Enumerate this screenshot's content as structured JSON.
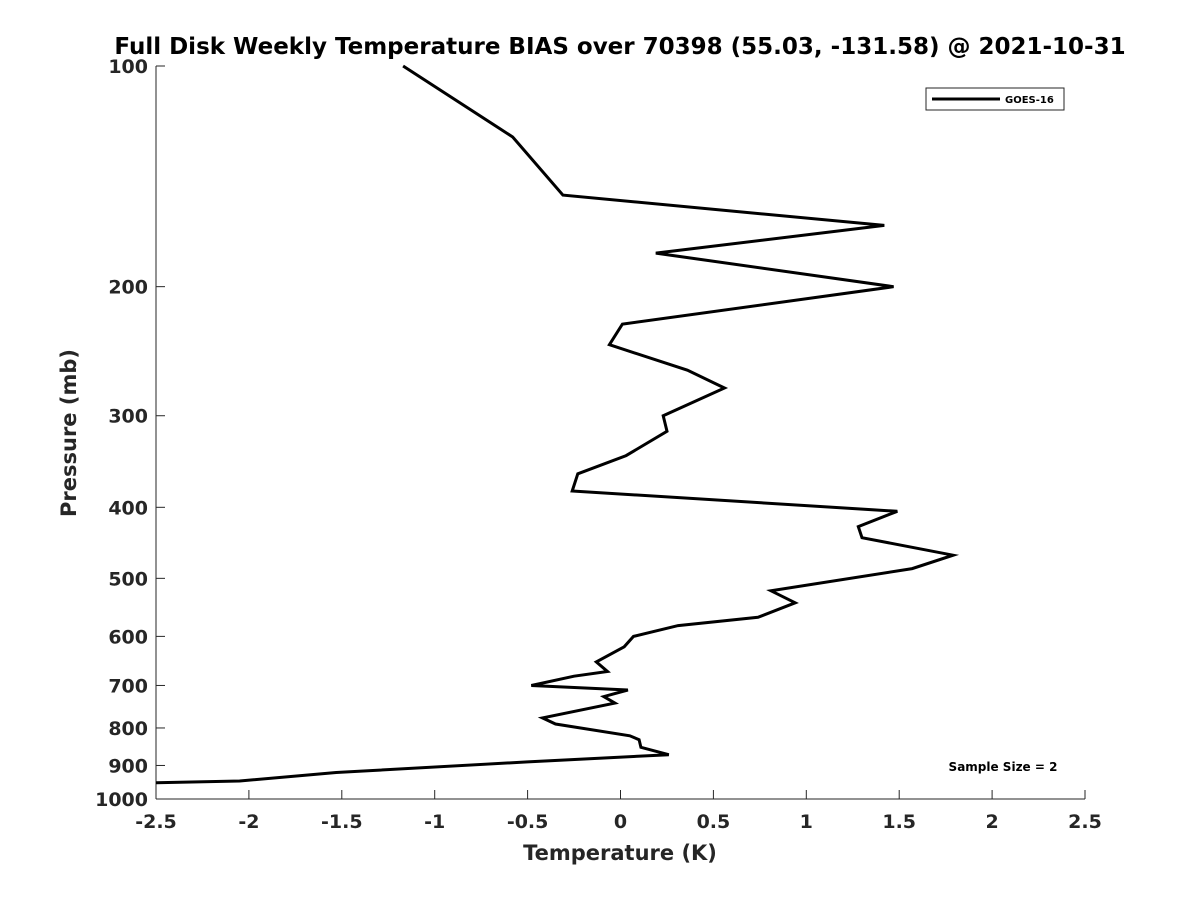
{
  "chart_data": {
    "type": "line",
    "title": "Full Disk Weekly Temperature BIAS over 70398 (55.03, -131.58) @ 2021-10-31",
    "xlabel": "Temperature (K)",
    "ylabel": "Pressure (mb)",
    "xlim": [
      -2.5,
      2.5
    ],
    "ylim": [
      100,
      1000
    ],
    "y_scale": "log",
    "y_reversed": true,
    "x_ticks": [
      -2.5,
      -2,
      -1.5,
      -1,
      -0.5,
      0,
      0.5,
      1,
      1.5,
      2,
      2.5
    ],
    "x_tick_labels": [
      "-2.5",
      "-2",
      "-1.5",
      "-1",
      "-0.5",
      "0",
      "0.5",
      "1",
      "1.5",
      "2",
      "2.5"
    ],
    "y_ticks": [
      100,
      200,
      300,
      400,
      500,
      600,
      700,
      800,
      900,
      1000
    ],
    "y_tick_labels": [
      "100",
      "200",
      "300",
      "400",
      "500",
      "600",
      "700",
      "800",
      "900",
      "1000"
    ],
    "grid": false,
    "legend_position": "top-right",
    "line_color": "#000000",
    "series": [
      {
        "name": "GOES-16",
        "x": [
          -1.17,
          -0.58,
          -0.31,
          1.42,
          0.19,
          1.47,
          0.01,
          -0.06,
          0.36,
          0.56,
          0.23,
          0.25,
          0.03,
          -0.23,
          -0.26,
          1.49,
          1.28,
          1.3,
          1.79,
          1.57,
          0.81,
          0.94,
          0.74,
          0.31,
          0.07,
          0.02,
          -0.13,
          -0.07,
          -0.25,
          -0.48,
          0.04,
          -0.09,
          -0.03,
          -0.42,
          -0.35,
          0.05,
          0.1,
          0.11,
          0.26,
          -0.5,
          -1.53,
          -2.05,
          -2.5
        ],
        "y": [
          100,
          125,
          150,
          165,
          180,
          200,
          225,
          240,
          260,
          275,
          300,
          315,
          340,
          360,
          380,
          405,
          425,
          440,
          465,
          485,
          520,
          540,
          565,
          580,
          600,
          620,
          650,
          670,
          680,
          700,
          710,
          725,
          740,
          775,
          790,
          820,
          830,
          850,
          870,
          890,
          920,
          945,
          950
        ]
      }
    ],
    "annotations": [
      {
        "text": "Sample Size = 2",
        "position": "bottom-right"
      }
    ]
  }
}
